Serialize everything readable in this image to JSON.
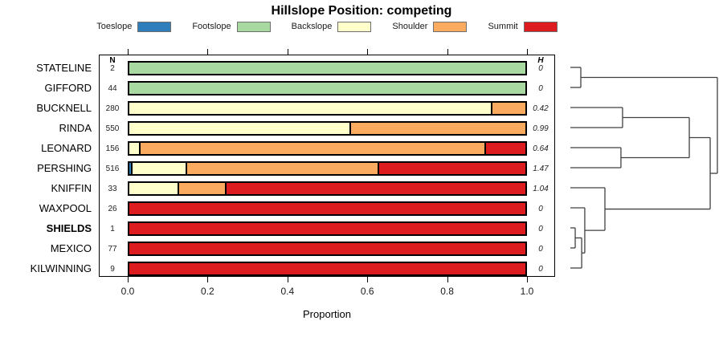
{
  "title": "Hillslope Position: competing",
  "legend": {
    "items": [
      {
        "label": "Toeslope",
        "color": "#2e7ebb"
      },
      {
        "label": "Footslope",
        "color": "#a8d9a0"
      },
      {
        "label": "Backslope",
        "color": "#ffffcc"
      },
      {
        "label": "Shoulder",
        "color": "#fbab60"
      },
      {
        "label": "Summit",
        "color": "#dc1c1e"
      }
    ]
  },
  "table": {
    "n_header": "N",
    "h_header": "H"
  },
  "xaxis": {
    "label": "Proportion",
    "ticks": [
      "0.0",
      "0.2",
      "0.4",
      "0.6",
      "0.8",
      "1.0"
    ]
  },
  "rows": [
    {
      "name": "STATELINE",
      "n": "2",
      "h": "0",
      "emphasis": false,
      "segments": [
        {
          "class": "Footslope",
          "value": 1.0
        }
      ]
    },
    {
      "name": "GIFFORD",
      "n": "44",
      "h": "0",
      "emphasis": false,
      "segments": [
        {
          "class": "Footslope",
          "value": 1.0
        }
      ]
    },
    {
      "name": "BUCKNELL",
      "n": "280",
      "h": "0.42",
      "emphasis": false,
      "segments": [
        {
          "class": "Backslope",
          "value": 0.913
        },
        {
          "class": "Shoulder",
          "value": 0.087
        }
      ]
    },
    {
      "name": "RINDA",
      "n": "550",
      "h": "0.99",
      "emphasis": false,
      "segments": [
        {
          "class": "Backslope",
          "value": 0.555
        },
        {
          "class": "Shoulder",
          "value": 0.445
        }
      ]
    },
    {
      "name": "LEONARD",
      "n": "156",
      "h": "0.64",
      "emphasis": false,
      "segments": [
        {
          "class": "Backslope",
          "value": 0.024
        },
        {
          "class": "Shoulder",
          "value": 0.873
        },
        {
          "class": "Summit",
          "value": 0.103
        }
      ]
    },
    {
      "name": "PERSHING",
      "n": "516",
      "h": "1.47",
      "emphasis": false,
      "segments": [
        {
          "class": "Toeslope",
          "value": 0.004
        },
        {
          "class": "Backslope",
          "value": 0.139
        },
        {
          "class": "Shoulder",
          "value": 0.483
        },
        {
          "class": "Summit",
          "value": 0.374
        }
      ]
    },
    {
      "name": "KNIFFIN",
      "n": "33",
      "h": "1.04",
      "emphasis": false,
      "segments": [
        {
          "class": "Backslope",
          "value": 0.121
        },
        {
          "class": "Shoulder",
          "value": 0.121
        },
        {
          "class": "Summit",
          "value": 0.758
        }
      ]
    },
    {
      "name": "WAXPOOL",
      "n": "26",
      "h": "0",
      "emphasis": false,
      "segments": [
        {
          "class": "Summit",
          "value": 1.0
        }
      ]
    },
    {
      "name": "SHIELDS",
      "n": "1",
      "h": "0",
      "emphasis": true,
      "segments": [
        {
          "class": "Summit",
          "value": 1.0
        }
      ]
    },
    {
      "name": "MEXICO",
      "n": "77",
      "h": "0",
      "emphasis": false,
      "segments": [
        {
          "class": "Summit",
          "value": 1.0
        }
      ]
    },
    {
      "name": "KILWINNING",
      "n": "9",
      "h": "0",
      "emphasis": false,
      "segments": [
        {
          "class": "Summit",
          "value": 1.0
        }
      ]
    }
  ],
  "chart_data": {
    "type": "bar",
    "subtype": "horizontal-stacked-proportion",
    "title": "Hillslope Position: competing",
    "xlabel": "Proportion",
    "xlim": [
      0,
      1
    ],
    "xticks": [
      0.0,
      0.2,
      0.4,
      0.6,
      0.8,
      1.0
    ],
    "legend_position": "top",
    "legend": [
      "Toeslope",
      "Footslope",
      "Backslope",
      "Shoulder",
      "Summit"
    ],
    "categories": [
      "STATELINE",
      "GIFFORD",
      "BUCKNELL",
      "RINDA",
      "LEONARD",
      "PERSHING",
      "KNIFFIN",
      "WAXPOOL",
      "SHIELDS",
      "MEXICO",
      "KILWINNING"
    ],
    "N": [
      2,
      44,
      280,
      550,
      156,
      516,
      33,
      26,
      1,
      77,
      9
    ],
    "H_shannon": [
      0,
      0,
      0.42,
      0.99,
      0.64,
      1.47,
      1.04,
      0,
      0,
      0,
      0
    ],
    "series": [
      {
        "name": "Toeslope",
        "values": [
          0,
          0,
          0,
          0,
          0,
          0.004,
          0,
          0,
          0,
          0,
          0
        ]
      },
      {
        "name": "Footslope",
        "values": [
          1,
          1,
          0,
          0,
          0,
          0,
          0,
          0,
          0,
          0,
          0
        ]
      },
      {
        "name": "Backslope",
        "values": [
          0,
          0,
          0.913,
          0.555,
          0.024,
          0.139,
          0.121,
          0,
          0,
          0,
          0
        ]
      },
      {
        "name": "Shoulder",
        "values": [
          0,
          0,
          0.087,
          0.445,
          0.873,
          0.483,
          0.121,
          0,
          0,
          0,
          0
        ]
      },
      {
        "name": "Summit",
        "values": [
          0,
          0,
          0,
          0,
          0.103,
          0.374,
          0.758,
          1,
          1,
          1,
          1
        ]
      }
    ],
    "dendrogram": {
      "position": "right",
      "tree": {
        "h": 1.0,
        "children": [
          {
            "h": 0.071,
            "children": [
              {
                "leaf": "STATELINE"
              },
              {
                "leaf": "GIFFORD"
              }
            ]
          },
          {
            "h": 0.951,
            "children": [
              {
                "h": 0.809,
                "children": [
                  {
                    "h": 0.355,
                    "children": [
                      {
                        "leaf": "BUCKNELL"
                      },
                      {
                        "leaf": "RINDA"
                      }
                    ]
                  },
                  {
                    "h": 0.344,
                    "children": [
                      {
                        "leaf": "LEONARD"
                      },
                      {
                        "leaf": "PERSHING"
                      }
                    ]
                  }
                ]
              },
              {
                "h": 0.235,
                "children": [
                  {
                    "leaf": "KNIFFIN"
                  },
                  {
                    "h": 0.098,
                    "children": [
                      {
                        "leaf": "WAXPOOL"
                      },
                      {
                        "h": 0.077,
                        "children": [
                          {
                            "h": 0.033,
                            "children": [
                              {
                                "leaf": "SHIELDS"
                              },
                              {
                                "leaf": "MEXICO"
                              }
                            ]
                          },
                          {
                            "leaf": "KILWINNING"
                          }
                        ]
                      }
                    ]
                  }
                ]
              }
            ]
          }
        ]
      }
    }
  }
}
